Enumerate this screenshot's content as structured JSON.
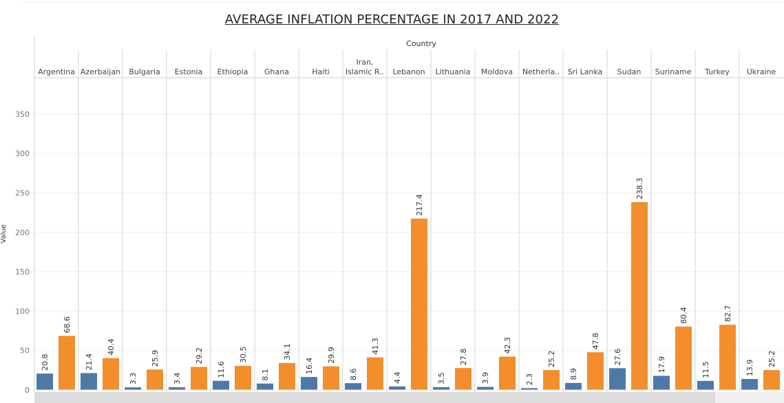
{
  "title": "AVERAGE INFLATION PERCENTAGE IN 2017 AND 2022",
  "chart_data": {
    "type": "bar",
    "column_header": "Country",
    "ylabel": "Value",
    "ylim": [
      0,
      390
    ],
    "yticks": [
      0,
      50,
      100,
      150,
      200,
      250,
      300,
      350
    ],
    "categories": [
      [
        "Argentina"
      ],
      [
        "Azerbaijan"
      ],
      [
        "Bulgaria"
      ],
      [
        "Estonia"
      ],
      [
        "Ethiopia"
      ],
      [
        "Ghana"
      ],
      [
        "Haiti"
      ],
      [
        "Iran,",
        "Islamic R.."
      ],
      [
        "Lebanon"
      ],
      [
        "Lithuania"
      ],
      [
        "Moldova"
      ],
      [
        "Netherla.."
      ],
      [
        "Sri Lanka"
      ],
      [
        "Sudan"
      ],
      [
        "Suriname"
      ],
      [
        "Turkey"
      ],
      [
        "Ukraine"
      ]
    ],
    "series": [
      {
        "color": "#4e79a7",
        "values": [
          20.8,
          21.4,
          3.3,
          3.4,
          11.6,
          8.1,
          16.4,
          8.6,
          4.4,
          3.5,
          3.9,
          2.3,
          8.9,
          27.6,
          17.9,
          11.5,
          13.9
        ]
      },
      {
        "color": "#f28e2b",
        "values": [
          68.6,
          40.4,
          25.9,
          29.2,
          30.5,
          34.1,
          29.9,
          41.3,
          217.4,
          27.8,
          42.3,
          25.2,
          47.8,
          238.3,
          80.4,
          82.7,
          25.2
        ]
      }
    ],
    "grid": true,
    "legend": "none"
  }
}
